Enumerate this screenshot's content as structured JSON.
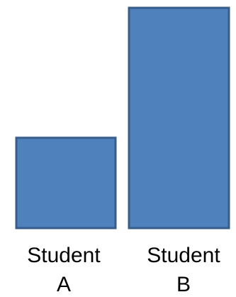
{
  "chart_data": {
    "type": "bar",
    "title": "",
    "xlabel": "",
    "ylabel": "",
    "categories": [
      {
        "line1": "Student",
        "line2": "A"
      },
      {
        "line1": "Student",
        "line2": "B"
      }
    ],
    "values": [
      41,
      100
    ],
    "ylim": [
      0,
      100
    ],
    "grid": false,
    "legend": "none",
    "colors": {
      "fill": "#4f81bd",
      "stroke": "#385d8a"
    }
  }
}
